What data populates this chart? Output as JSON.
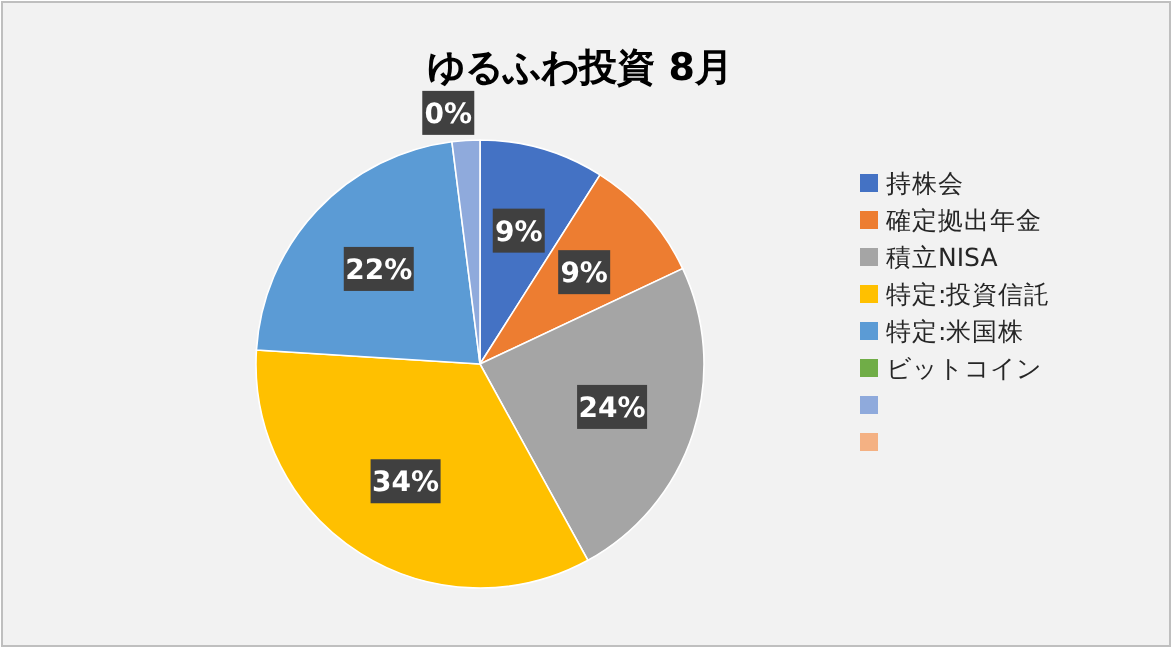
{
  "chart_data": {
    "type": "pie",
    "title": "ゆるふわ投資 8月",
    "categories": [
      "持株会",
      "確定拠出年金",
      "積立NISA",
      "特定:投資信託",
      "特定:米国株",
      "ビットコイン",
      null,
      null
    ],
    "values": [
      9,
      9,
      24,
      34,
      22,
      0,
      2,
      0
    ],
    "value_labels": [
      "9%",
      "9%",
      "24%",
      "34%",
      "22%",
      "0%",
      null,
      null
    ],
    "colors": [
      "#4472c4",
      "#ed7d31",
      "#a5a5a5",
      "#ffc000",
      "#5b9bd5",
      "#70ad47",
      "#8faadc",
      "#f4b183"
    ],
    "legend": "right"
  }
}
